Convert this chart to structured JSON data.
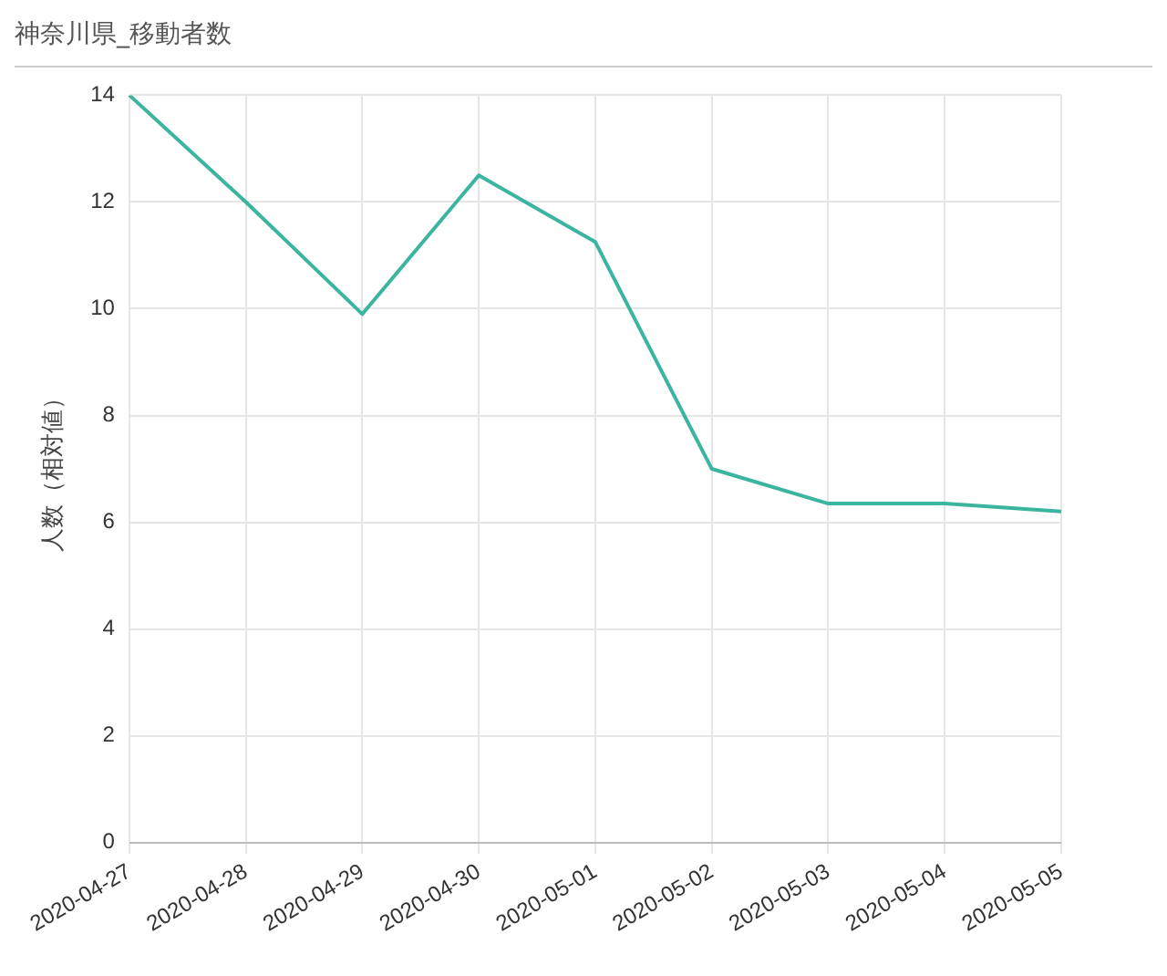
{
  "chart_data": {
    "type": "line",
    "title": "神奈川県_移動者数",
    "ylabel": "人数（相対値）",
    "categories": [
      "2020-04-27",
      "2020-04-28",
      "2020-04-29",
      "2020-04-30",
      "2020-05-01",
      "2020-05-02",
      "2020-05-03",
      "2020-05-04",
      "2020-05-05"
    ],
    "series": [
      {
        "color": "#3cb5a0",
        "values": [
          14.0,
          12.0,
          9.9,
          12.5,
          11.25,
          7.0,
          6.35,
          6.35,
          6.2
        ]
      }
    ],
    "ylim": [
      0,
      14
    ],
    "yticks": [
      0,
      2,
      4,
      6,
      8,
      10,
      12,
      14
    ],
    "grid": true,
    "legend": false,
    "marker": "none",
    "line_style": "solid"
  }
}
